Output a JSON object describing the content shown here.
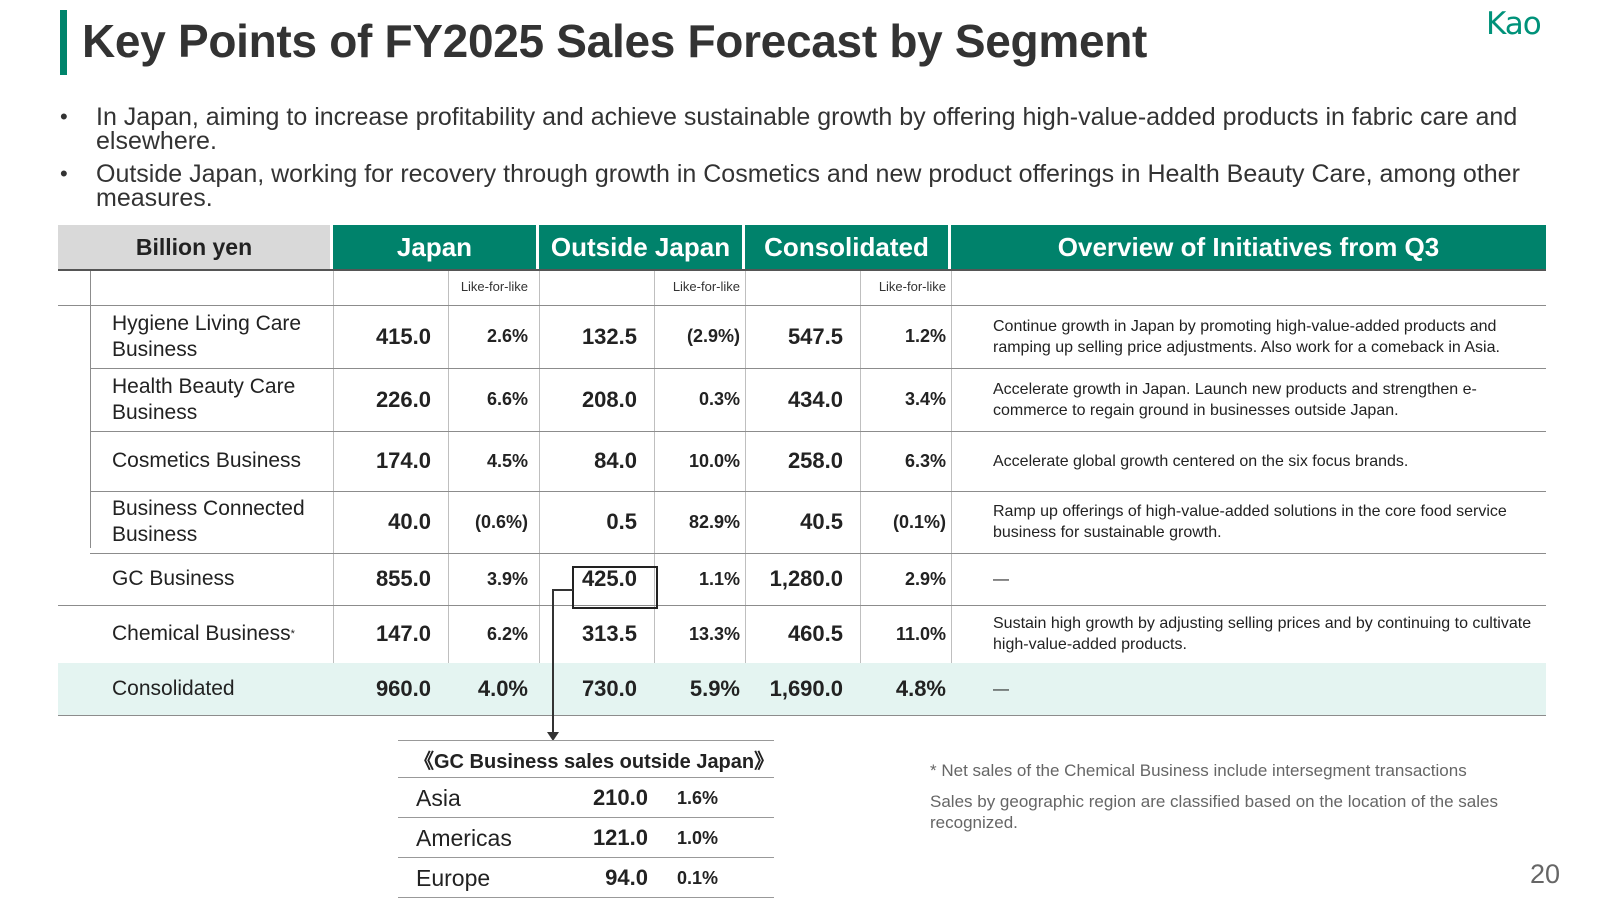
{
  "slide": {
    "title": "Key Points of FY2025 Sales Forecast by Segment",
    "logo": "Kao",
    "page_number": "20",
    "bullets": [
      "In Japan, aiming to increase profitability and achieve sustainable growth by offering high-value-added products in fabric care and elsewhere.",
      "Outside Japan, working for recovery through growth in Cosmetics and new product offerings in Health Beauty Care, among other measures."
    ]
  },
  "table": {
    "headers": {
      "unit": "Billion yen",
      "japan": "Japan",
      "outside": "Outside Japan",
      "consolidated": "Consolidated",
      "overview": "Overview of Initiatives from Q3"
    },
    "like_for_like": "Like-for-like",
    "rows": [
      {
        "segment": "Hygiene Living Care Business",
        "japan": "415.0",
        "japan_lfl": "2.6%",
        "outside": "132.5",
        "outside_lfl": "(2.9%)",
        "consolidated": "547.5",
        "consolidated_lfl": "1.2%",
        "overview": "Continue growth in Japan by promoting high-value-added products and ramping up selling price adjustments. Also work for a comeback in Asia."
      },
      {
        "segment": "Health Beauty Care Business",
        "japan": "226.0",
        "japan_lfl": "6.6%",
        "outside": "208.0",
        "outside_lfl": "0.3%",
        "consolidated": "434.0",
        "consolidated_lfl": "3.4%",
        "overview": "Accelerate growth in Japan. Launch new products and strengthen e-commerce to regain ground in businesses outside Japan."
      },
      {
        "segment": "Cosmetics Business",
        "japan": "174.0",
        "japan_lfl": "4.5%",
        "outside": "84.0",
        "outside_lfl": "10.0%",
        "consolidated": "258.0",
        "consolidated_lfl": "6.3%",
        "overview": "Accelerate global growth centered on the six focus brands."
      },
      {
        "segment": "Business Connected Business",
        "japan": "40.0",
        "japan_lfl": "(0.6%)",
        "outside": "0.5",
        "outside_lfl": "82.9%",
        "consolidated": "40.5",
        "consolidated_lfl": "(0.1%)",
        "overview": "Ramp up offerings of high-value-added solutions in the core food service business for sustainable growth."
      },
      {
        "segment": "GC Business",
        "japan": "855.0",
        "japan_lfl": "3.9%",
        "outside": "425.0",
        "outside_lfl": "1.1%",
        "consolidated": "1,280.0",
        "consolidated_lfl": "2.9%",
        "overview": "—"
      },
      {
        "segment": "Chemical Business",
        "segment_sup": "*",
        "japan": "147.0",
        "japan_lfl": "6.2%",
        "outside": "313.5",
        "outside_lfl": "13.3%",
        "consolidated": "460.5",
        "consolidated_lfl": "11.0%",
        "overview": "Sustain high growth by adjusting selling prices and by continuing to cultivate high-value-added products."
      },
      {
        "segment": "Consolidated",
        "japan": "960.0",
        "japan_lfl": "4.0%",
        "outside": "730.0",
        "outside_lfl": "5.9%",
        "consolidated": "1,690.0",
        "consolidated_lfl": "4.8%",
        "overview": "—"
      }
    ]
  },
  "gc_outside": {
    "title": "《GC Business sales outside Japan》",
    "rows": [
      {
        "region": "Asia",
        "value": "210.0",
        "pct": "1.6%"
      },
      {
        "region": "Americas",
        "value": "121.0",
        "pct": "1.0%"
      },
      {
        "region": "Europe",
        "value": "94.0",
        "pct": "0.1%"
      }
    ]
  },
  "notes": [
    "* Net sales of the Chemical Business include intersegment transactions",
    "Sales by geographic region are classified based on the location of the sales recognized."
  ]
}
